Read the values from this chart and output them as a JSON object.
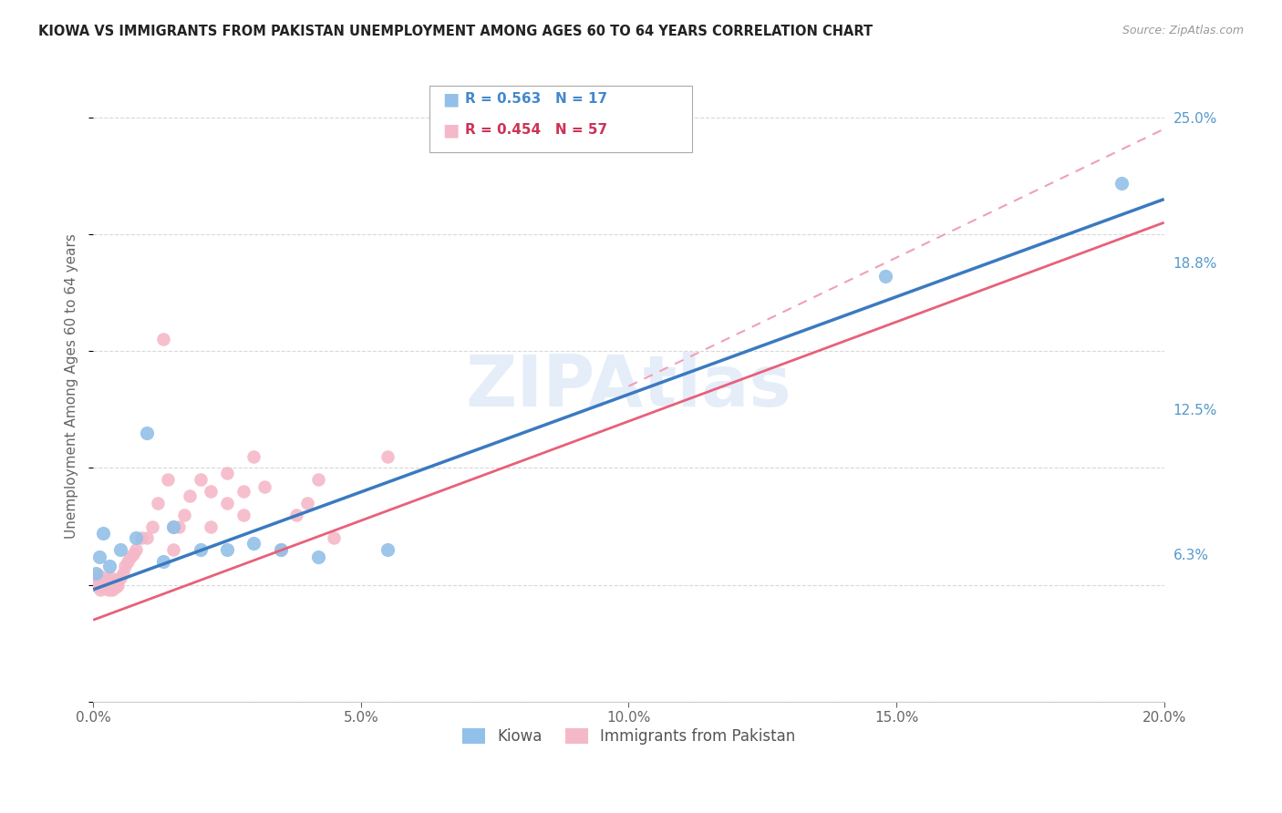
{
  "title": "KIOWA VS IMMIGRANTS FROM PAKISTAN UNEMPLOYMENT AMONG AGES 60 TO 64 YEARS CORRELATION CHART",
  "source": "Source: ZipAtlas.com",
  "ylabel": "Unemployment Among Ages 60 to 64 years",
  "x_tick_vals": [
    0.0,
    5.0,
    10.0,
    15.0,
    20.0
  ],
  "y_tick_vals_right": [
    25.0,
    18.8,
    12.5,
    6.3
  ],
  "xlim": [
    0.0,
    20.0
  ],
  "ylim": [
    0.0,
    27.0
  ],
  "kiowa_R": 0.563,
  "kiowa_N": 17,
  "pakistan_R": 0.454,
  "pakistan_N": 57,
  "kiowa_color": "#92c0e8",
  "pakistan_color": "#f5b8c8",
  "kiowa_line_color": "#3a7abf",
  "pakistan_line_color": "#e8607a",
  "pakistan_dash_color": "#f0a0b5",
  "background_color": "#ffffff",
  "grid_color": "#d8d8d8",
  "kiowa_x": [
    0.05,
    0.12,
    0.18,
    0.3,
    0.5,
    0.8,
    1.0,
    1.3,
    1.5,
    2.0,
    2.5,
    3.0,
    3.5,
    4.2,
    5.5,
    14.8,
    19.2
  ],
  "kiowa_y": [
    5.5,
    6.2,
    7.2,
    5.8,
    6.5,
    7.0,
    11.5,
    6.0,
    7.5,
    6.5,
    6.5,
    6.8,
    6.5,
    6.2,
    6.5,
    18.2,
    22.2
  ],
  "pakistan_x": [
    0.02,
    0.04,
    0.06,
    0.08,
    0.1,
    0.1,
    0.12,
    0.14,
    0.16,
    0.18,
    0.2,
    0.22,
    0.24,
    0.26,
    0.28,
    0.3,
    0.32,
    0.34,
    0.36,
    0.38,
    0.4,
    0.42,
    0.44,
    0.46,
    0.5,
    0.55,
    0.6,
    0.65,
    0.7,
    0.75,
    0.8,
    0.9,
    1.0,
    1.1,
    1.2,
    1.3,
    1.4,
    1.5,
    1.6,
    1.7,
    1.8,
    2.0,
    2.2,
    2.5,
    2.8,
    3.0,
    3.2,
    3.5,
    4.0,
    4.5,
    2.5,
    1.5,
    3.8,
    2.2,
    4.2,
    5.5,
    2.8
  ],
  "pakistan_y": [
    5.0,
    5.0,
    5.2,
    5.1,
    5.3,
    5.4,
    5.0,
    4.8,
    5.1,
    4.9,
    5.2,
    5.0,
    5.3,
    5.0,
    4.8,
    5.0,
    5.1,
    5.3,
    4.8,
    5.0,
    5.1,
    4.9,
    5.2,
    5.0,
    5.3,
    5.5,
    5.8,
    6.0,
    6.2,
    6.3,
    6.5,
    7.0,
    7.0,
    7.5,
    8.5,
    15.5,
    9.5,
    6.5,
    7.5,
    8.0,
    8.8,
    9.5,
    7.5,
    8.5,
    9.0,
    10.5,
    9.2,
    6.5,
    8.5,
    7.0,
    9.8,
    7.5,
    8.0,
    9.0,
    9.5,
    10.5,
    8.0
  ],
  "kiowa_line_x0": 0.0,
  "kiowa_line_y0": 4.8,
  "kiowa_line_x1": 20.0,
  "kiowa_line_y1": 21.5,
  "pakistan_line_x0": 0.0,
  "pakistan_line_y0": 3.5,
  "pakistan_line_x1": 20.0,
  "pakistan_line_y1": 20.5,
  "pakistan_dash_x0": 10.0,
  "pakistan_dash_y0": 13.5,
  "pakistan_dash_x1": 20.0,
  "pakistan_dash_y1": 24.5
}
